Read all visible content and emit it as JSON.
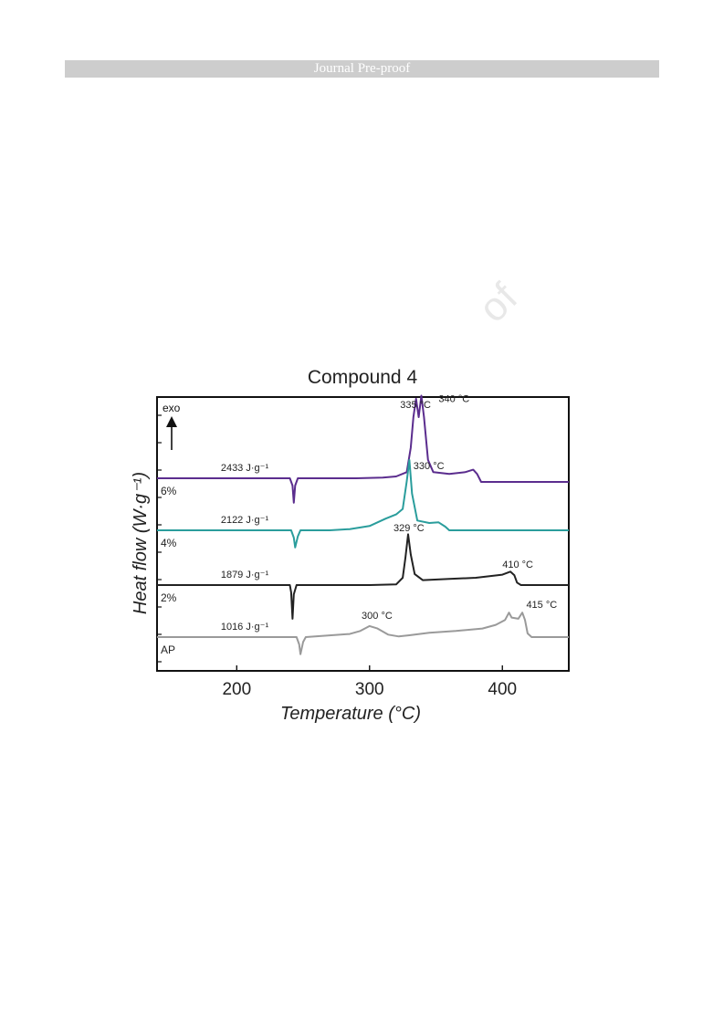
{
  "header": {
    "text": "Journal Pre-proof"
  },
  "watermark": {
    "text": "of"
  },
  "chart_data": {
    "type": "line",
    "title": "Compound 4",
    "xlabel": "Temperature (°C)",
    "ylabel": "Heat flow (W·g⁻¹)",
    "xlim": [
      140,
      450
    ],
    "xticks": [
      200,
      300,
      400
    ],
    "direction_label": "exo",
    "series": [
      {
        "name": "6%",
        "color": "#5b2d8e",
        "points": [
          [
            140,
            0
          ],
          [
            225,
            0
          ],
          [
            240,
            0
          ],
          [
            242,
            -0.12
          ],
          [
            243,
            -0.4
          ],
          [
            244,
            -0.12
          ],
          [
            246,
            0
          ],
          [
            290,
            0
          ],
          [
            310,
            0.01
          ],
          [
            320,
            0.03
          ],
          [
            328,
            0.1
          ],
          [
            331,
            0.5
          ],
          [
            333,
            1.0
          ],
          [
            335,
            1.3
          ],
          [
            337,
            1.0
          ],
          [
            339,
            1.35
          ],
          [
            341,
            1.0
          ],
          [
            344,
            0.3
          ],
          [
            348,
            0.1
          ],
          [
            360,
            0.07
          ],
          [
            372,
            0.1
          ],
          [
            378,
            0.14
          ],
          [
            381,
            0.07
          ],
          [
            384,
            -0.06
          ],
          [
            400,
            -0.06
          ],
          [
            450,
            -0.06
          ]
        ],
        "labels": [
          {
            "text": "2433 J·g⁻¹",
            "x": 188,
            "y": 0.12
          },
          {
            "text": "335 °C",
            "x": 323,
            "y": 1.15
          },
          {
            "text": "340 °C",
            "x": 352,
            "y": 1.25
          }
        ]
      },
      {
        "name": "4%",
        "color": "#2a9d9c",
        "points": [
          [
            140,
            0
          ],
          [
            228,
            0
          ],
          [
            241,
            0
          ],
          [
            243,
            -0.12
          ],
          [
            244,
            -0.28
          ],
          [
            246,
            -0.1
          ],
          [
            248,
            0
          ],
          [
            270,
            0
          ],
          [
            285,
            0.02
          ],
          [
            300,
            0.07
          ],
          [
            312,
            0.19
          ],
          [
            320,
            0.26
          ],
          [
            325,
            0.35
          ],
          [
            328,
            0.8
          ],
          [
            330,
            1.15
          ],
          [
            332,
            0.6
          ],
          [
            336,
            0.16
          ],
          [
            345,
            0.12
          ],
          [
            352,
            0.13
          ],
          [
            357,
            0.06
          ],
          [
            360,
            0
          ],
          [
            450,
            0
          ]
        ],
        "labels": [
          {
            "text": "2122 J·g⁻¹",
            "x": 188,
            "y": 0.12
          },
          {
            "text": "330 °C",
            "x": 333,
            "y": 1.0
          }
        ]
      },
      {
        "name": "2%",
        "color": "#222222",
        "points": [
          [
            140,
            0
          ],
          [
            228,
            0
          ],
          [
            240,
            0
          ],
          [
            241,
            -0.12
          ],
          [
            242,
            -0.55
          ],
          [
            243,
            -0.15
          ],
          [
            245,
            0
          ],
          [
            300,
            0
          ],
          [
            320,
            0.01
          ],
          [
            325,
            0.12
          ],
          [
            327,
            0.45
          ],
          [
            329,
            0.83
          ],
          [
            331,
            0.5
          ],
          [
            334,
            0.18
          ],
          [
            340,
            0.08
          ],
          [
            360,
            0.1
          ],
          [
            380,
            0.12
          ],
          [
            400,
            0.17
          ],
          [
            406,
            0.22
          ],
          [
            409,
            0.16
          ],
          [
            411,
            0.04
          ],
          [
            414,
            0
          ],
          [
            450,
            0
          ]
        ],
        "labels": [
          {
            "text": "1879 J·g⁻¹",
            "x": 188,
            "y": 0.12
          },
          {
            "text": "329 °C",
            "x": 318,
            "y": 0.88
          },
          {
            "text": "410 °C",
            "x": 400,
            "y": 0.28
          }
        ]
      },
      {
        "name": "AP",
        "color": "#9a9a9a",
        "points": [
          [
            140,
            0
          ],
          [
            240,
            0
          ],
          [
            245,
            0
          ],
          [
            247,
            -0.12
          ],
          [
            248,
            -0.28
          ],
          [
            250,
            -0.08
          ],
          [
            252,
            0
          ],
          [
            285,
            0.05
          ],
          [
            293,
            0.1
          ],
          [
            300,
            0.18
          ],
          [
            306,
            0.14
          ],
          [
            314,
            0.04
          ],
          [
            322,
            0.01
          ],
          [
            330,
            0.03
          ],
          [
            345,
            0.07
          ],
          [
            365,
            0.1
          ],
          [
            385,
            0.14
          ],
          [
            395,
            0.2
          ],
          [
            402,
            0.28
          ],
          [
            405,
            0.4
          ],
          [
            407,
            0.32
          ],
          [
            412,
            0.3
          ],
          [
            415,
            0.4
          ],
          [
            417,
            0.28
          ],
          [
            419,
            0.06
          ],
          [
            422,
            0
          ],
          [
            450,
            0
          ]
        ],
        "labels": [
          {
            "text": "1016 J·g⁻¹",
            "x": 188,
            "y": 0.12
          },
          {
            "text": "300 °C",
            "x": 294,
            "y": 0.3
          },
          {
            "text": "415 °C",
            "x": 418,
            "y": 0.48
          }
        ]
      }
    ]
  }
}
